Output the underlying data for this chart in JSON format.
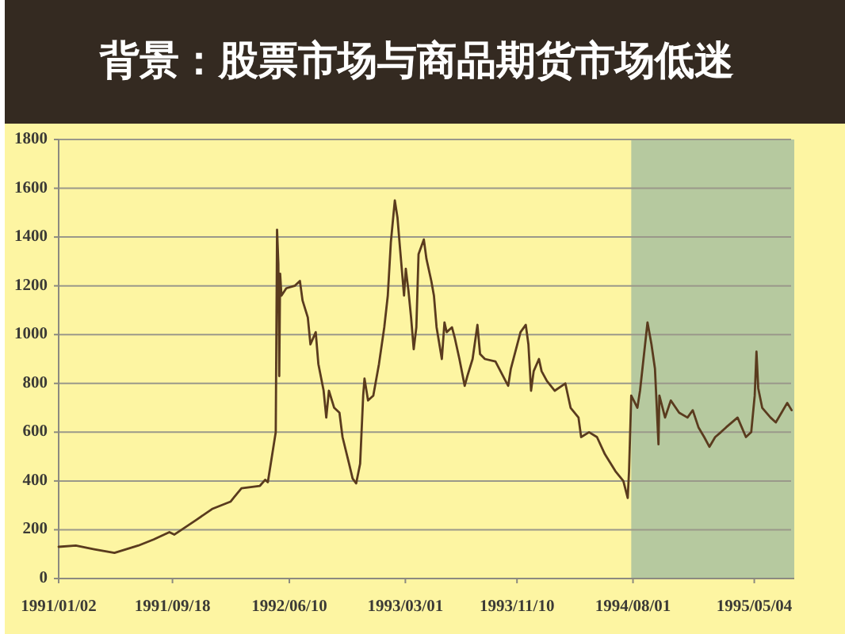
{
  "chart_data": {
    "type": "line",
    "title": "背景：股票市场与商品期货市场低迷",
    "x": [
      "1991-01-02",
      "1991-02-10",
      "1991-03-24",
      "1991-05-09",
      "1991-07-02",
      "1991-08-06",
      "1991-09-11",
      "1991-09-22",
      "1991-11-11",
      "1991-12-17",
      "1992-01-28",
      "1992-02-06",
      "1992-02-22",
      "1992-04-04",
      "1992-04-16",
      "1992-04-22",
      "1992-05-10",
      "1992-05-13",
      "1992-05-16",
      "1992-05-18",
      "1992-05-20",
      "1992-05-23",
      "1992-06-03",
      "1992-06-22",
      "1992-07-04",
      "1992-07-10",
      "1992-07-22",
      "1992-07-28",
      "1992-08-09",
      "1992-08-15",
      "1992-08-27",
      "1992-09-02",
      "1992-09-08",
      "1992-09-20",
      "1992-10-02",
      "1992-10-09",
      "1992-10-24",
      "1992-11-01",
      "1992-11-09",
      "1992-11-18",
      "1992-11-25",
      "1992-11-28",
      "1992-12-06",
      "1992-12-18",
      "1992-12-31",
      "1993-01-12",
      "1993-01-20",
      "1993-01-27",
      "1993-02-05",
      "1993-02-11",
      "1993-02-17",
      "1993-02-26",
      "1993-03-02",
      "1993-03-08",
      "1993-03-14",
      "1993-03-20",
      "1993-03-26",
      "1993-03-31",
      "1993-04-12",
      "1993-04-18",
      "1993-04-29",
      "1993-05-05",
      "1993-05-11",
      "1993-05-23",
      "1993-05-29",
      "1993-06-03",
      "1993-06-15",
      "1993-06-21",
      "1993-07-02",
      "1993-07-14",
      "1993-07-20",
      "1993-08-01",
      "1993-08-12",
      "1993-08-18",
      "1993-08-29",
      "1993-09-22",
      "1993-10-15",
      "1993-10-21",
      "1993-10-27",
      "1993-11-18",
      "1993-11-30",
      "1993-12-06",
      "1993-12-12",
      "1993-12-18",
      "1993-12-30",
      "1994-01-05",
      "1994-01-17",
      "1994-02-04",
      "1994-02-28",
      "1994-03-12",
      "1994-03-30",
      "1994-04-05",
      "1994-04-23",
      "1994-05-11",
      "1994-05-29",
      "1994-06-22",
      "1994-07-10",
      "1994-07-20",
      "1994-07-23",
      "1994-07-28",
      "1994-08-11",
      "1994-08-17",
      "1994-09-03",
      "1994-09-12",
      "1994-09-20",
      "1994-09-28",
      "1994-09-30",
      "1994-10-13",
      "1994-10-26",
      "1994-11-14",
      "1994-12-03",
      "1994-12-15",
      "1994-12-28",
      "1995-01-10",
      "1995-01-22",
      "1995-02-04",
      "1995-02-17",
      "1995-03-01",
      "1995-03-27",
      "1995-04-15",
      "1995-04-27",
      "1995-05-05",
      "1995-05-09",
      "1995-05-13",
      "1995-05-22",
      "1995-06-10",
      "1995-06-22",
      "1995-07-05",
      "1995-07-18",
      "1995-07-28"
    ],
    "values": [
      130,
      135,
      120,
      105,
      135,
      160,
      190,
      180,
      240,
      285,
      315,
      335,
      370,
      380,
      405,
      395,
      600,
      1430,
      1290,
      830,
      1250,
      1160,
      1190,
      1200,
      1220,
      1140,
      1070,
      960,
      1010,
      880,
      770,
      660,
      770,
      700,
      680,
      580,
      470,
      410,
      390,
      470,
      750,
      820,
      730,
      750,
      880,
      1030,
      1160,
      1380,
      1550,
      1480,
      1350,
      1160,
      1270,
      1180,
      1070,
      940,
      1030,
      1330,
      1390,
      1310,
      1220,
      1160,
      1030,
      900,
      1050,
      1010,
      1030,
      990,
      900,
      790,
      830,
      900,
      1040,
      920,
      900,
      890,
      810,
      790,
      860,
      1010,
      1040,
      960,
      770,
      850,
      900,
      850,
      810,
      770,
      800,
      700,
      660,
      580,
      600,
      580,
      510,
      440,
      400,
      330,
      440,
      750,
      700,
      770,
      1050,
      960,
      860,
      550,
      750,
      660,
      730,
      680,
      660,
      690,
      620,
      580,
      540,
      580,
      600,
      620,
      660,
      580,
      600,
      750,
      930,
      780,
      700,
      660,
      640,
      680,
      720,
      690
    ],
    "color": "#5a3b1e",
    "xlim": [
      "1991-01-02",
      "1995-08-03"
    ],
    "xticks": [
      {
        "value": "1991-01-02",
        "label": "1991/01/02"
      },
      {
        "value": "1991-09-18",
        "label": "1991/09/18"
      },
      {
        "value": "1992-06-10",
        "label": "1992/06/10"
      },
      {
        "value": "1993-03-01",
        "label": "1993/03/01"
      },
      {
        "value": "1993-11-10",
        "label": "1993/11/10"
      },
      {
        "value": "1994-08-01",
        "label": "1994/08/01"
      },
      {
        "value": "1995-05-04",
        "label": "1995/05/04"
      }
    ],
    "ylim": [
      0,
      1800
    ],
    "yticks": [
      0,
      200,
      400,
      600,
      800,
      1000,
      1200,
      1400,
      1600,
      1800
    ],
    "grid": "y",
    "bands": [
      {
        "axis": "x",
        "from": "1994-07-28",
        "to": "1995-08-03",
        "color": "#b6c99f"
      }
    ]
  }
}
